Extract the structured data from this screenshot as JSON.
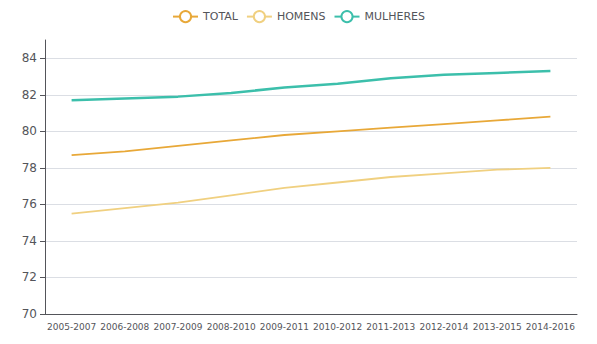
{
  "chart_data": {
    "type": "line",
    "categories": [
      "2005-2007",
      "2006-2008",
      "2007-2009",
      "2008-2010",
      "2009-2011",
      "2010-2012",
      "2011-2013",
      "2012-2014",
      "2013-2015",
      "2014-2016"
    ],
    "series": [
      {
        "name": "TOTAL",
        "color": "#e8a838",
        "values": [
          78.7,
          78.9,
          79.2,
          79.5,
          79.8,
          80.0,
          80.2,
          80.4,
          80.6,
          80.8
        ]
      },
      {
        "name": "HOMENS",
        "color": "#f0d080",
        "values": [
          75.5,
          75.8,
          76.1,
          76.5,
          76.9,
          77.2,
          77.5,
          77.7,
          77.9,
          78.0
        ]
      },
      {
        "name": "MULHERES",
        "color": "#3cbfab",
        "values": [
          81.7,
          81.8,
          81.9,
          82.1,
          82.4,
          82.6,
          82.9,
          83.1,
          83.2,
          83.3
        ]
      }
    ],
    "ylim": [
      70,
      85
    ],
    "yticks": [
      70,
      72,
      74,
      76,
      78,
      80,
      82,
      84
    ],
    "grid": true,
    "legend": "top"
  }
}
